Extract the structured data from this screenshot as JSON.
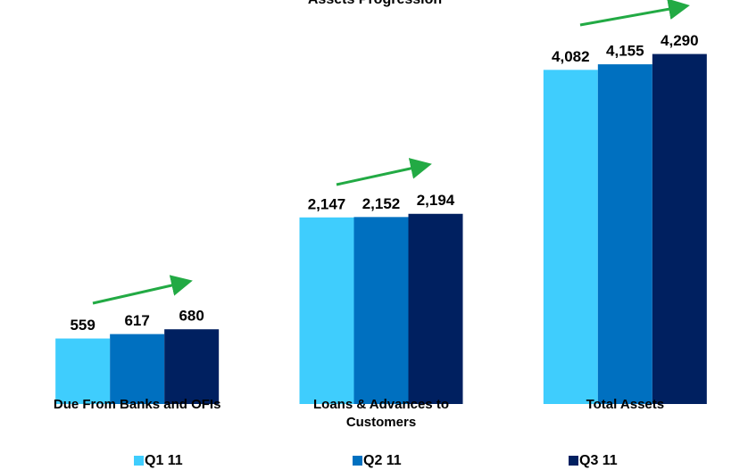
{
  "chart_data": {
    "type": "bar",
    "title": "Assets Progression",
    "categories": [
      "Due From Banks and OFIs",
      "Loans & Advances to Customers",
      "Total Assets"
    ],
    "series": [
      {
        "name": "Q1 11",
        "color": "#3fcdfd",
        "values": [
          559,
          2147,
          4082
        ],
        "value_labels": [
          "559",
          "2,147",
          "4,082"
        ]
      },
      {
        "name": "Q2 11",
        "color": "#0070c0",
        "values": [
          617,
          2152,
          4155
        ],
        "value_labels": [
          "617",
          "2,152",
          "4,155"
        ]
      },
      {
        "name": "Q3 11",
        "color": "#002060",
        "values": [
          680,
          2194,
          4290
        ],
        "value_labels": [
          "680",
          "2,194",
          "4,290"
        ]
      }
    ],
    "ylim": [
      -300,
      4700
    ]
  }
}
